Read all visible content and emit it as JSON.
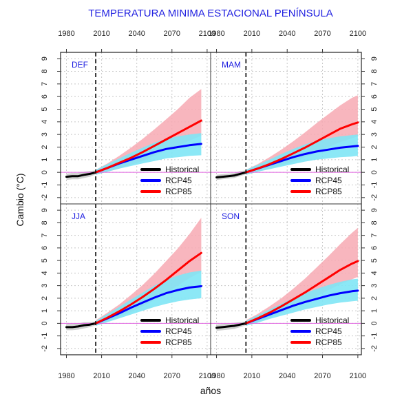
{
  "chart_data": {
    "type": "line",
    "title": "TEMPERATURA MINIMA ESTACIONAL PENÍNSULA",
    "xlabel": "años",
    "ylabel": "Cambio (°C)",
    "xlim": [
      1975,
      2103
    ],
    "ylim": [
      -2.5,
      9.5
    ],
    "x_ticks": [
      1980,
      2010,
      2040,
      2070,
      2100
    ],
    "y_ticks": [
      -2,
      -1,
      0,
      1,
      2,
      3,
      4,
      5,
      6,
      7,
      8,
      9
    ],
    "baseline_year": 2005,
    "grid": true,
    "legend_position": "bottom-right",
    "legend": [
      {
        "label": "Historical",
        "color": "#000000"
      },
      {
        "label": "RCP45",
        "color": "#0000ff"
      },
      {
        "label": "RCP85",
        "color": "#ff0000"
      }
    ],
    "colors": {
      "historical_line": "#000000",
      "historical_band": "#c8c8c8",
      "rcp45_line": "#0000ff",
      "rcp45_band": "#7fe6f5",
      "rcp85_line": "#ff0000",
      "rcp85_band": "#f7a9b3",
      "zero_line": "#e066e0",
      "baseline": "#000000"
    },
    "panels": [
      {
        "label": "DEF",
        "series": [
          {
            "name": "Historical",
            "x": [
              1980,
              1985,
              1990,
              1995,
              2000,
              2005
            ],
            "y": [
              -0.35,
              -0.3,
              -0.3,
              -0.2,
              -0.12,
              0.0
            ],
            "low": [
              -0.6,
              -0.55,
              -0.55,
              -0.45,
              -0.35,
              -0.15
            ],
            "high": [
              -0.1,
              -0.05,
              -0.05,
              0.05,
              0.1,
              0.15
            ]
          },
          {
            "name": "RCP45",
            "x": [
              2005,
              2015,
              2025,
              2035,
              2045,
              2055,
              2065,
              2075,
              2085,
              2095
            ],
            "y": [
              0.0,
              0.35,
              0.7,
              1.0,
              1.3,
              1.6,
              1.85,
              2.0,
              2.15,
              2.25
            ],
            "low": [
              -0.2,
              0.05,
              0.3,
              0.5,
              0.7,
              0.9,
              1.1,
              1.2,
              1.3,
              1.35
            ],
            "high": [
              0.2,
              0.65,
              1.1,
              1.55,
              1.95,
              2.35,
              2.65,
              2.85,
              3.0,
              3.1
            ]
          },
          {
            "name": "RCP85",
            "x": [
              2005,
              2015,
              2025,
              2035,
              2045,
              2055,
              2065,
              2075,
              2085,
              2095
            ],
            "y": [
              0.0,
              0.35,
              0.75,
              1.15,
              1.6,
              2.1,
              2.6,
              3.1,
              3.6,
              4.1
            ],
            "low": [
              -0.2,
              0.05,
              0.3,
              0.6,
              0.9,
              1.3,
              1.7,
              2.1,
              2.5,
              2.9
            ],
            "high": [
              0.2,
              0.7,
              1.3,
              1.95,
              2.65,
              3.4,
              4.2,
              5.0,
              5.9,
              6.6
            ]
          }
        ]
      },
      {
        "label": "MAM",
        "series": [
          {
            "name": "Historical",
            "x": [
              1980,
              1985,
              1990,
              1995,
              2000,
              2005
            ],
            "y": [
              -0.4,
              -0.35,
              -0.3,
              -0.25,
              -0.12,
              0.0
            ],
            "low": [
              -0.6,
              -0.55,
              -0.5,
              -0.45,
              -0.3,
              -0.15
            ],
            "high": [
              -0.2,
              -0.15,
              -0.1,
              -0.05,
              0.1,
              0.15
            ]
          },
          {
            "name": "RCP45",
            "x": [
              2005,
              2015,
              2025,
              2035,
              2045,
              2055,
              2065,
              2075,
              2085,
              2095,
              2100
            ],
            "y": [
              0.0,
              0.3,
              0.6,
              0.9,
              1.2,
              1.45,
              1.65,
              1.8,
              1.95,
              2.05,
              2.1
            ],
            "low": [
              -0.2,
              0.05,
              0.25,
              0.45,
              0.65,
              0.85,
              1.0,
              1.1,
              1.2,
              1.25,
              1.3
            ],
            "high": [
              0.2,
              0.6,
              1.0,
              1.45,
              1.85,
              2.2,
              2.5,
              2.7,
              2.85,
              2.95,
              3.0
            ]
          },
          {
            "name": "RCP85",
            "x": [
              2005,
              2015,
              2025,
              2035,
              2045,
              2055,
              2065,
              2075,
              2085,
              2095,
              2100
            ],
            "y": [
              0.0,
              0.3,
              0.65,
              1.05,
              1.5,
              1.95,
              2.45,
              2.95,
              3.45,
              3.8,
              3.95
            ],
            "low": [
              -0.2,
              0.05,
              0.3,
              0.55,
              0.85,
              1.2,
              1.6,
              2.0,
              2.4,
              2.7,
              2.85
            ],
            "high": [
              0.2,
              0.65,
              1.2,
              1.8,
              2.45,
              3.15,
              3.9,
              4.6,
              5.3,
              5.9,
              6.1
            ]
          }
        ]
      },
      {
        "label": "JJA",
        "series": [
          {
            "name": "Historical",
            "x": [
              1980,
              1985,
              1990,
              1995,
              2000,
              2005
            ],
            "y": [
              -0.3,
              -0.3,
              -0.25,
              -0.15,
              -0.1,
              0.0
            ],
            "low": [
              -0.55,
              -0.55,
              -0.5,
              -0.4,
              -0.3,
              -0.15
            ],
            "high": [
              -0.05,
              -0.05,
              0.0,
              0.1,
              0.1,
              0.15
            ]
          },
          {
            "name": "RCP45",
            "x": [
              2005,
              2015,
              2025,
              2035,
              2045,
              2055,
              2065,
              2075,
              2085,
              2095
            ],
            "y": [
              0.0,
              0.4,
              0.8,
              1.25,
              1.65,
              2.05,
              2.4,
              2.65,
              2.85,
              2.95
            ],
            "low": [
              -0.2,
              0.1,
              0.4,
              0.7,
              1.0,
              1.3,
              1.55,
              1.75,
              1.9,
              2.0
            ],
            "high": [
              0.2,
              0.75,
              1.3,
              1.9,
              2.45,
              3.0,
              3.45,
              3.8,
              4.05,
              4.2
            ]
          },
          {
            "name": "RCP85",
            "x": [
              2005,
              2015,
              2025,
              2035,
              2045,
              2055,
              2065,
              2075,
              2085,
              2095
            ],
            "y": [
              0.0,
              0.45,
              0.95,
              1.5,
              2.1,
              2.75,
              3.45,
              4.2,
              4.95,
              5.6
            ],
            "low": [
              -0.2,
              0.15,
              0.5,
              0.9,
              1.35,
              1.85,
              2.4,
              3.0,
              3.6,
              4.1
            ],
            "high": [
              0.25,
              0.85,
              1.5,
              2.25,
              3.05,
              3.95,
              4.95,
              5.95,
              7.1,
              8.4
            ]
          }
        ]
      },
      {
        "label": "SON",
        "series": [
          {
            "name": "Historical",
            "x": [
              1980,
              1985,
              1990,
              1995,
              2000,
              2005
            ],
            "y": [
              -0.35,
              -0.3,
              -0.25,
              -0.2,
              -0.1,
              0.0
            ],
            "low": [
              -0.6,
              -0.55,
              -0.5,
              -0.45,
              -0.3,
              -0.15
            ],
            "high": [
              -0.1,
              -0.05,
              0.0,
              0.05,
              0.1,
              0.15
            ]
          },
          {
            "name": "RCP45",
            "x": [
              2005,
              2015,
              2025,
              2035,
              2045,
              2055,
              2065,
              2075,
              2085,
              2095,
              2100
            ],
            "y": [
              0.0,
              0.35,
              0.7,
              1.05,
              1.4,
              1.7,
              1.95,
              2.2,
              2.4,
              2.55,
              2.6
            ],
            "low": [
              -0.2,
              0.05,
              0.35,
              0.6,
              0.85,
              1.1,
              1.3,
              1.5,
              1.65,
              1.75,
              1.8
            ],
            "high": [
              0.2,
              0.65,
              1.1,
              1.55,
              2.0,
              2.4,
              2.75,
              3.05,
              3.3,
              3.5,
              3.55
            ]
          },
          {
            "name": "RCP85",
            "x": [
              2005,
              2015,
              2025,
              2035,
              2045,
              2055,
              2065,
              2075,
              2085,
              2095,
              2100
            ],
            "y": [
              0.0,
              0.4,
              0.85,
              1.35,
              1.9,
              2.45,
              3.05,
              3.65,
              4.25,
              4.75,
              4.95
            ],
            "low": [
              -0.2,
              0.1,
              0.45,
              0.85,
              1.25,
              1.7,
              2.15,
              2.65,
              3.1,
              3.5,
              3.7
            ],
            "high": [
              0.25,
              0.75,
              1.35,
              2.0,
              2.75,
              3.55,
              4.45,
              5.35,
              6.3,
              7.2,
              7.6
            ]
          }
        ]
      }
    ]
  }
}
